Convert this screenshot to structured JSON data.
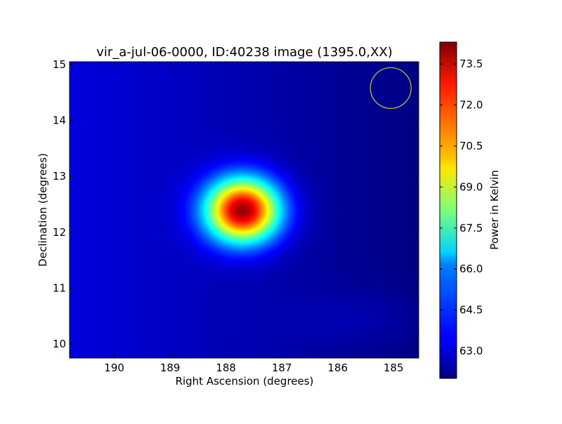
{
  "chart_data": {
    "type": "heatmap",
    "title": "vir_a-jul-06-0000, ID:40238 image (1395.0,XX)",
    "xlabel": "Right Ascension (degrees)",
    "ylabel": "Declination (degrees)",
    "colorbar_label": "Power in Kelvin",
    "colormap": "jet",
    "x_reversed": true,
    "xlim": [
      190.8,
      184.55
    ],
    "ylim": [
      9.75,
      15.05
    ],
    "xticks": [
      190,
      189,
      188,
      187,
      186,
      185
    ],
    "xtick_labels": [
      "190",
      "189",
      "188",
      "187",
      "186",
      "185"
    ],
    "yticks": [
      10,
      11,
      12,
      13,
      14,
      15
    ],
    "ytick_labels": [
      "10",
      "11",
      "12",
      "13",
      "14",
      "15"
    ],
    "clim": [
      62.0,
      74.3
    ],
    "colorbar_ticks": [
      63.0,
      64.5,
      66.0,
      67.5,
      69.0,
      70.5,
      72.0,
      73.5
    ],
    "colorbar_tick_labels": [
      "63.0",
      "64.5",
      "66.0",
      "67.5",
      "69.0",
      "70.5",
      "72.0",
      "73.5"
    ],
    "source": {
      "ra": 187.7,
      "dec": 12.39,
      "peak_kelvin": 74.0,
      "background_kelvin": 62.6
    },
    "beam_circle": {
      "ra": 185.05,
      "dec": 14.58,
      "color": "#c8c832"
    },
    "grid": false
  }
}
